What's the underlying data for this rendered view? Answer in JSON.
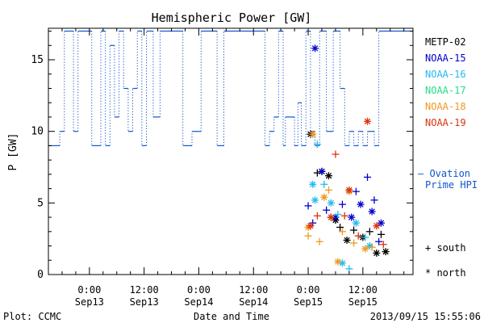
{
  "chart_data": {
    "type": "line",
    "title": "Hemispheric Power [GW]",
    "xlabel": "Date and Time",
    "ylabel": "P [GW]",
    "ylim": [
      0,
      17.2
    ],
    "xlim": [
      "2013-09-12T15:00",
      "2013-09-15T23:00"
    ],
    "yticks": [
      0,
      5,
      10,
      15
    ],
    "xticks": [
      {
        "time": "2013-09-13T00:00",
        "label1": "0:00",
        "label2": "Sep13"
      },
      {
        "time": "2013-09-13T12:00",
        "label1": "12:00",
        "label2": "Sep13"
      },
      {
        "time": "2013-09-14T00:00",
        "label1": "0:00",
        "label2": "Sep14"
      },
      {
        "time": "2013-09-14T12:00",
        "label1": "12:00",
        "label2": "Sep14"
      },
      {
        "time": "2013-09-15T00:00",
        "label1": "0:00",
        "label2": "Sep15"
      },
      {
        "time": "2013-09-15T12:00",
        "label1": "12:00",
        "label2": "Sep15"
      }
    ],
    "grid": false,
    "legend_position": "right",
    "legend": [
      {
        "name": "METP-02",
        "color": "#000000"
      },
      {
        "name": "NOAA-15",
        "color": "#0000cc"
      },
      {
        "name": "NOAA-16",
        "color": "#22bbee"
      },
      {
        "name": "NOAA-17",
        "color": "#22dd88"
      },
      {
        "name": "NOAA-18",
        "color": "#ee9922"
      },
      {
        "name": "NOAA-19",
        "color": "#dd3311"
      }
    ],
    "ovation_label": [
      "— Ovation",
      "Prime HPI"
    ],
    "ovation_color": "#1155cc",
    "marker_legend": [
      {
        "symbol": "+",
        "label": "south"
      },
      {
        "symbol": "*",
        "label": "north"
      }
    ],
    "ovation": [
      [
        "2013-09-12T15:00",
        9.0
      ],
      [
        "2013-09-12T17:30",
        9.0
      ],
      [
        "2013-09-12T17:30",
        10.0
      ],
      [
        "2013-09-12T18:30",
        10.0
      ],
      [
        "2013-09-12T18:30",
        17.0
      ],
      [
        "2013-09-12T20:30",
        17.0
      ],
      [
        "2013-09-12T20:30",
        10.0
      ],
      [
        "2013-09-12T21:30",
        10.0
      ],
      [
        "2013-09-12T21:30",
        17.0
      ],
      [
        "2013-09-13T00:30",
        17.0
      ],
      [
        "2013-09-13T00:30",
        9.0
      ],
      [
        "2013-09-13T02:30",
        9.0
      ],
      [
        "2013-09-13T02:30",
        17.0
      ],
      [
        "2013-09-13T03:30",
        17.0
      ],
      [
        "2013-09-13T03:30",
        9.0
      ],
      [
        "2013-09-13T04:30",
        9.0
      ],
      [
        "2013-09-13T04:30",
        16.0
      ],
      [
        "2013-09-13T05:30",
        16.0
      ],
      [
        "2013-09-13T05:30",
        11.0
      ],
      [
        "2013-09-13T06:30",
        11.0
      ],
      [
        "2013-09-13T06:30",
        17.0
      ],
      [
        "2013-09-13T07:30",
        17.0
      ],
      [
        "2013-09-13T07:30",
        13.0
      ],
      [
        "2013-09-13T08:30",
        13.0
      ],
      [
        "2013-09-13T08:30",
        10.0
      ],
      [
        "2013-09-13T09:30",
        10.0
      ],
      [
        "2013-09-13T09:30",
        13.0
      ],
      [
        "2013-09-13T10:30",
        13.0
      ],
      [
        "2013-09-13T10:30",
        17.0
      ],
      [
        "2013-09-13T11:30",
        17.0
      ],
      [
        "2013-09-13T11:30",
        9.0
      ],
      [
        "2013-09-13T12:30",
        9.0
      ],
      [
        "2013-09-13T12:30",
        17.0
      ],
      [
        "2013-09-13T14:00",
        17.0
      ],
      [
        "2013-09-13T14:00",
        11.0
      ],
      [
        "2013-09-13T15:30",
        11.0
      ],
      [
        "2013-09-13T15:30",
        17.0
      ],
      [
        "2013-09-13T17:00",
        17.0
      ],
      [
        "2013-09-13T17:00",
        17.0
      ],
      [
        "2013-09-13T20:30",
        17.0
      ],
      [
        "2013-09-13T20:30",
        9.0
      ],
      [
        "2013-09-13T22:30",
        9.0
      ],
      [
        "2013-09-13T22:30",
        10.0
      ],
      [
        "2013-09-14T00:30",
        10.0
      ],
      [
        "2013-09-14T00:30",
        17.0
      ],
      [
        "2013-09-14T04:00",
        17.0
      ],
      [
        "2013-09-14T04:00",
        9.0
      ],
      [
        "2013-09-14T05:30",
        9.0
      ],
      [
        "2013-09-14T05:30",
        17.0
      ],
      [
        "2013-09-14T14:30",
        17.0
      ],
      [
        "2013-09-14T14:30",
        9.0
      ],
      [
        "2013-09-14T15:30",
        9.0
      ],
      [
        "2013-09-14T15:30",
        10.0
      ],
      [
        "2013-09-14T16:30",
        10.0
      ],
      [
        "2013-09-14T16:30",
        11.0
      ],
      [
        "2013-09-14T17:30",
        11.0
      ],
      [
        "2013-09-14T17:30",
        17.0
      ],
      [
        "2013-09-14T18:30",
        17.0
      ],
      [
        "2013-09-14T18:30",
        9.0
      ],
      [
        "2013-09-14T19:00",
        9.0
      ],
      [
        "2013-09-14T19:00",
        11.0
      ],
      [
        "2013-09-14T21:00",
        11.0
      ],
      [
        "2013-09-14T21:00",
        9.0
      ],
      [
        "2013-09-14T21:45",
        9.0
      ],
      [
        "2013-09-14T21:45",
        12.0
      ],
      [
        "2013-09-14T22:30",
        12.0
      ],
      [
        "2013-09-14T22:30",
        9.0
      ],
      [
        "2013-09-14T23:30",
        9.0
      ],
      [
        "2013-09-14T23:30",
        17.0
      ],
      [
        "2013-09-15T00:30",
        17.0
      ],
      [
        "2013-09-15T00:30",
        10.0
      ],
      [
        "2013-09-15T01:30",
        10.0
      ],
      [
        "2013-09-15T01:30",
        9.0
      ],
      [
        "2013-09-15T02:30",
        9.0
      ],
      [
        "2013-09-15T02:30",
        17.0
      ],
      [
        "2013-09-15T04:00",
        17.0
      ],
      [
        "2013-09-15T04:00",
        10.0
      ],
      [
        "2013-09-15T05:30",
        10.0
      ],
      [
        "2013-09-15T05:30",
        17.0
      ],
      [
        "2013-09-15T07:00",
        17.0
      ],
      [
        "2013-09-15T07:00",
        13.0
      ],
      [
        "2013-09-15T08:00",
        13.0
      ],
      [
        "2013-09-15T08:00",
        9.0
      ],
      [
        "2013-09-15T09:00",
        9.0
      ],
      [
        "2013-09-15T09:00",
        10.0
      ],
      [
        "2013-09-15T10:00",
        10.0
      ],
      [
        "2013-09-15T10:00",
        9.0
      ],
      [
        "2013-09-15T11:00",
        9.0
      ],
      [
        "2013-09-15T11:00",
        10.0
      ],
      [
        "2013-09-15T12:00",
        10.0
      ],
      [
        "2013-09-15T12:00",
        9.0
      ],
      [
        "2013-09-15T13:00",
        9.0
      ],
      [
        "2013-09-15T13:00",
        10.0
      ],
      [
        "2013-09-15T14:30",
        10.0
      ],
      [
        "2013-09-15T14:30",
        9.0
      ],
      [
        "2013-09-15T15:30",
        9.0
      ],
      [
        "2013-09-15T15:30",
        17.0
      ],
      [
        "2013-09-15T23:00",
        17.0
      ]
    ],
    "points": [
      {
        "sat": "METP-02",
        "m": "*",
        "t": "2013-09-15T00:30",
        "y": 9.8
      },
      {
        "sat": "METP-02",
        "m": "+",
        "t": "2013-09-15T02:00",
        "y": 7.1
      },
      {
        "sat": "METP-02",
        "m": "*",
        "t": "2013-09-15T03:00",
        "y": 7.2
      },
      {
        "sat": "METP-02",
        "m": "*",
        "t": "2013-09-15T04:30",
        "y": 6.9
      },
      {
        "sat": "METP-02",
        "m": "+",
        "t": "2013-09-15T05:00",
        "y": 4.0
      },
      {
        "sat": "METP-02",
        "m": "*",
        "t": "2013-09-15T06:00",
        "y": 3.8
      },
      {
        "sat": "METP-02",
        "m": "+",
        "t": "2013-09-15T07:00",
        "y": 3.3
      },
      {
        "sat": "METP-02",
        "m": "*",
        "t": "2013-09-15T08:30",
        "y": 2.4
      },
      {
        "sat": "METP-02",
        "m": "+",
        "t": "2013-09-15T10:00",
        "y": 3.1
      },
      {
        "sat": "METP-02",
        "m": "*",
        "t": "2013-09-15T12:00",
        "y": 2.6
      },
      {
        "sat": "METP-02",
        "m": "+",
        "t": "2013-09-15T13:30",
        "y": 3.0
      },
      {
        "sat": "METP-02",
        "m": "*",
        "t": "2013-09-15T15:00",
        "y": 1.5
      },
      {
        "sat": "METP-02",
        "m": "+",
        "t": "2013-09-15T16:00",
        "y": 2.8
      },
      {
        "sat": "METP-02",
        "m": "*",
        "t": "2013-09-15T17:00",
        "y": 1.6
      },
      {
        "sat": "NOAA-15",
        "m": "*",
        "t": "2013-09-15T01:30",
        "y": 15.8
      },
      {
        "sat": "NOAA-15",
        "m": "+",
        "t": "2013-09-15T00:00",
        "y": 4.8
      },
      {
        "sat": "NOAA-15",
        "m": "+",
        "t": "2013-09-15T01:00",
        "y": 3.6
      },
      {
        "sat": "NOAA-15",
        "m": "*",
        "t": "2013-09-15T03:00",
        "y": 7.2
      },
      {
        "sat": "NOAA-15",
        "m": "+",
        "t": "2013-09-15T04:00",
        "y": 4.5
      },
      {
        "sat": "NOAA-15",
        "m": "*",
        "t": "2013-09-15T06:00",
        "y": 4.0
      },
      {
        "sat": "NOAA-15",
        "m": "+",
        "t": "2013-09-15T07:30",
        "y": 4.9
      },
      {
        "sat": "NOAA-15",
        "m": "*",
        "t": "2013-09-15T09:30",
        "y": 4.0
      },
      {
        "sat": "NOAA-15",
        "m": "+",
        "t": "2013-09-15T10:30",
        "y": 5.8
      },
      {
        "sat": "NOAA-15",
        "m": "*",
        "t": "2013-09-15T11:30",
        "y": 4.9
      },
      {
        "sat": "NOAA-15",
        "m": "+",
        "t": "2013-09-15T13:00",
        "y": 6.8
      },
      {
        "sat": "NOAA-15",
        "m": "*",
        "t": "2013-09-15T14:00",
        "y": 4.4
      },
      {
        "sat": "NOAA-15",
        "m": "+",
        "t": "2013-09-15T14:30",
        "y": 5.2
      },
      {
        "sat": "NOAA-15",
        "m": "*",
        "t": "2013-09-15T16:00",
        "y": 3.6
      },
      {
        "sat": "NOAA-15",
        "m": "+",
        "t": "2013-09-15T15:30",
        "y": 2.3
      },
      {
        "sat": "NOAA-16",
        "m": "*",
        "t": "2013-09-15T01:00",
        "y": 6.3
      },
      {
        "sat": "NOAA-16",
        "m": "+",
        "t": "2013-09-15T02:00",
        "y": 9.1
      },
      {
        "sat": "NOAA-16",
        "m": "*",
        "t": "2013-09-15T01:30",
        "y": 5.2
      },
      {
        "sat": "NOAA-16",
        "m": "+",
        "t": "2013-09-15T03:30",
        "y": 6.3
      },
      {
        "sat": "NOAA-16",
        "m": "*",
        "t": "2013-09-15T05:00",
        "y": 5.0
      },
      {
        "sat": "NOAA-16",
        "m": "+",
        "t": "2013-09-15T06:30",
        "y": 4.2
      },
      {
        "sat": "NOAA-16",
        "m": "*",
        "t": "2013-09-15T07:30",
        "y": 0.8
      },
      {
        "sat": "NOAA-16",
        "m": "+",
        "t": "2013-09-15T09:00",
        "y": 0.4
      },
      {
        "sat": "NOAA-16",
        "m": "*",
        "t": "2013-09-15T10:30",
        "y": 3.6
      },
      {
        "sat": "NOAA-16",
        "m": "+",
        "t": "2013-09-15T12:30",
        "y": 2.6
      },
      {
        "sat": "NOAA-16",
        "m": "*",
        "t": "2013-09-15T13:30",
        "y": 2.0
      },
      {
        "sat": "NOAA-18",
        "m": "*",
        "t": "2013-09-15T00:00",
        "y": 3.3
      },
      {
        "sat": "NOAA-18",
        "m": "+",
        "t": "2013-09-15T00:00",
        "y": 2.7
      },
      {
        "sat": "NOAA-18",
        "m": "*",
        "t": "2013-09-15T01:00",
        "y": 9.8
      },
      {
        "sat": "NOAA-18",
        "m": "+",
        "t": "2013-09-15T02:30",
        "y": 2.3
      },
      {
        "sat": "NOAA-18",
        "m": "*",
        "t": "2013-09-15T03:30",
        "y": 5.4
      },
      {
        "sat": "NOAA-18",
        "m": "+",
        "t": "2013-09-15T04:30",
        "y": 5.9
      },
      {
        "sat": "NOAA-18",
        "m": "*",
        "t": "2013-09-15T06:30",
        "y": 0.9
      },
      {
        "sat": "NOAA-18",
        "m": "+",
        "t": "2013-09-15T07:30",
        "y": 3.0
      },
      {
        "sat": "NOAA-18",
        "m": "*",
        "t": "2013-09-15T09:00",
        "y": 5.8
      },
      {
        "sat": "NOAA-18",
        "m": "+",
        "t": "2013-09-15T10:00",
        "y": 2.2
      },
      {
        "sat": "NOAA-18",
        "m": "*",
        "t": "2013-09-15T12:30",
        "y": 1.8
      },
      {
        "sat": "NOAA-18",
        "m": "+",
        "t": "2013-09-15T14:00",
        "y": 1.9
      },
      {
        "sat": "NOAA-19",
        "m": "*",
        "t": "2013-09-15T13:00",
        "y": 10.7
      },
      {
        "sat": "NOAA-19",
        "m": "+",
        "t": "2013-09-15T06:00",
        "y": 8.4
      },
      {
        "sat": "NOAA-19",
        "m": "*",
        "t": "2013-09-15T00:30",
        "y": 3.4
      },
      {
        "sat": "NOAA-19",
        "m": "+",
        "t": "2013-09-15T02:00",
        "y": 4.1
      },
      {
        "sat": "NOAA-19",
        "m": "*",
        "t": "2013-09-15T05:00",
        "y": 4.0
      },
      {
        "sat": "NOAA-19",
        "m": "+",
        "t": "2013-09-15T08:00",
        "y": 4.1
      },
      {
        "sat": "NOAA-19",
        "m": "*",
        "t": "2013-09-15T09:00",
        "y": 5.9
      },
      {
        "sat": "NOAA-19",
        "m": "+",
        "t": "2013-09-15T11:00",
        "y": 2.7
      },
      {
        "sat": "NOAA-19",
        "m": "*",
        "t": "2013-09-15T15:00",
        "y": 3.4
      },
      {
        "sat": "NOAA-19",
        "m": "+",
        "t": "2013-09-15T16:30",
        "y": 2.1
      }
    ]
  },
  "footer": {
    "plot_label": "Plot: CCMC",
    "timestamp": "2013/09/15 15:55:06"
  }
}
